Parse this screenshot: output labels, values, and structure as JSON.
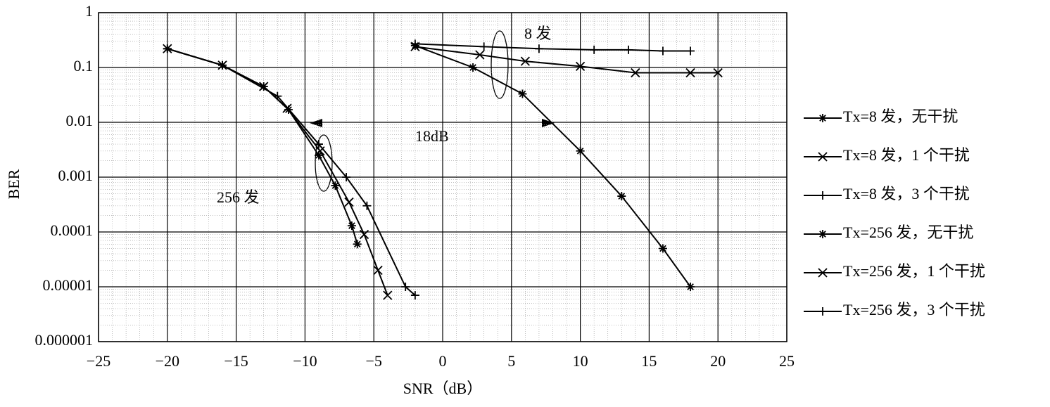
{
  "chart_data": {
    "type": "line",
    "x_label": "SNR（dB）",
    "y_label": "BER",
    "xlim": [
      -25,
      25
    ],
    "xticks": [
      {
        "value": -25,
        "label": "−25"
      },
      {
        "value": -20,
        "label": "−20"
      },
      {
        "value": -15,
        "label": "−15"
      },
      {
        "value": -10,
        "label": "−10"
      },
      {
        "value": -5,
        "label": "−5"
      },
      0,
      5,
      10,
      15,
      20,
      25
    ],
    "ylim": [
      1e-06,
      1
    ],
    "yscale": "log",
    "yticks": [
      1,
      0.1,
      0.01,
      0.001,
      0.0001,
      1e-05,
      1e-06
    ],
    "grid": true,
    "legend": "right",
    "annotations": [
      "8 发",
      "18dB",
      "256 发"
    ],
    "series": [
      {
        "name": "Tx=8 发，无干扰",
        "color": "#000000",
        "marker": "asterisk",
        "x": [
          -2,
          2.2,
          5.8,
          10,
          13,
          16,
          18
        ],
        "values": [
          0.25,
          0.1,
          0.033,
          0.003,
          0.00045,
          5e-05,
          1e-05
        ]
      },
      {
        "name": "Tx=8 发，1 个干扰",
        "color": "#000000",
        "marker": "x",
        "x": [
          -2,
          2.7,
          6,
          10,
          14,
          18,
          20
        ],
        "values": [
          0.24,
          0.17,
          0.13,
          0.105,
          0.08,
          0.08,
          0.08
        ]
      },
      {
        "name": "Tx=8 发，3 个干扰",
        "color": "#000000",
        "marker": "plus",
        "x": [
          -2,
          3,
          7,
          11,
          13.5,
          16,
          18
        ],
        "values": [
          0.27,
          0.24,
          0.22,
          0.21,
          0.21,
          0.2,
          0.2
        ]
      },
      {
        "name": "Tx=256 发，无干扰",
        "color": "#000000",
        "marker": "asterisk",
        "x": [
          -20,
          -16,
          -13,
          -11.2,
          -9,
          -7.8,
          -6.6,
          -6.2
        ],
        "values": [
          0.22,
          0.11,
          0.045,
          0.017,
          0.0025,
          0.0007,
          0.00013,
          6e-05
        ]
      },
      {
        "name": "Tx=256 发，1 个干扰",
        "color": "#000000",
        "marker": "x",
        "x": [
          -20,
          -16,
          -13,
          -11.3,
          -8.9,
          -6.8,
          -5.7,
          -4.7,
          -4
        ],
        "values": [
          0.22,
          0.11,
          0.045,
          0.018,
          0.003,
          0.00035,
          9e-05,
          2e-05,
          7e-06
        ]
      },
      {
        "name": "Tx=256 发，3 个干扰",
        "color": "#000000",
        "marker": "plus",
        "x": [
          -20,
          -16,
          -12,
          -9,
          -7,
          -5.5,
          -2.7,
          -2
        ],
        "values": [
          0.22,
          0.11,
          0.03,
          0.004,
          0.001,
          0.0003,
          1e-05,
          7e-06
        ]
      }
    ]
  }
}
